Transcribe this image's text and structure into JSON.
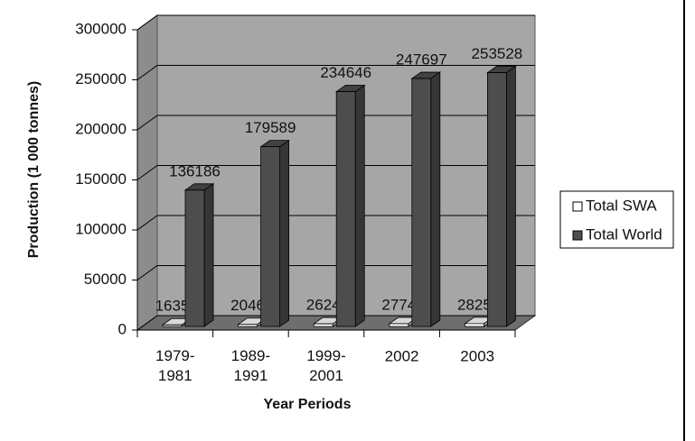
{
  "chart_data": {
    "type": "bar3d",
    "y_label": "Production (1 000 tonnes)",
    "x_label": "Year Periods",
    "categories": [
      "1979-\n1981",
      "1989-\n1991",
      "1999-\n2001",
      "2002",
      "2003"
    ],
    "series": [
      {
        "name": "Total SWA",
        "color": "#ffffff",
        "values": [
          1635,
          2046,
          2624,
          2774,
          2825
        ]
      },
      {
        "name": "Total World",
        "color": "#4d4d4d",
        "values": [
          136186,
          179589,
          234646,
          247697,
          253528
        ]
      }
    ],
    "ylim": [
      0,
      300000
    ],
    "yticks": [
      0,
      50000,
      100000,
      150000,
      200000,
      250000,
      300000
    ],
    "grid": true
  }
}
